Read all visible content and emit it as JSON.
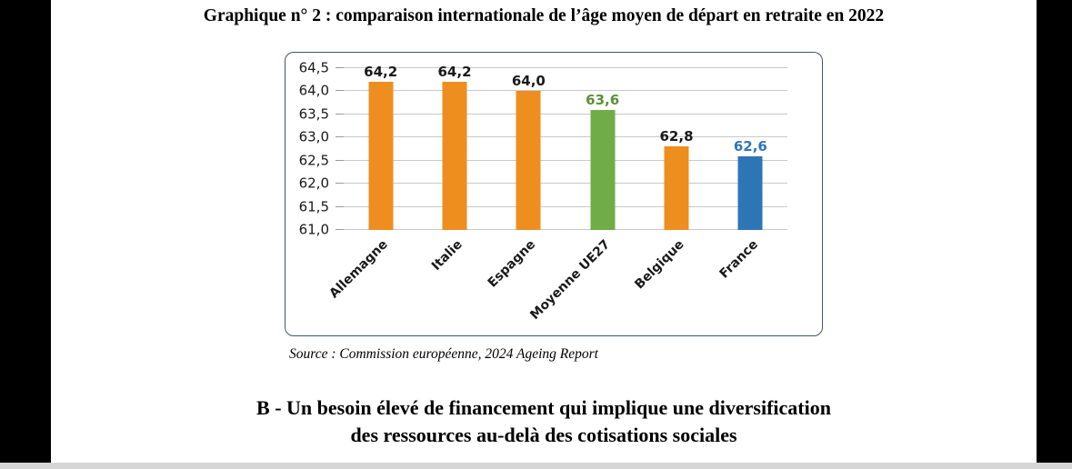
{
  "document": {
    "title": "Graphique n° 2 : comparaison internationale de l’âge moyen de départ en retraite en 2022",
    "source": "Source : Commission européenne, 2024 Ageing Report",
    "heading": {
      "line1": "B - Un besoin élevé de financement qui implique une diversification",
      "line2": "des ressources au-delà des cotisations sociales"
    }
  },
  "chart_data": {
    "type": "bar",
    "title": "Graphique n° 2 : comparaison internationale de l’âge moyen de départ en retraite en 2022",
    "categories": [
      "Allemagne",
      "Italie",
      "Espagne",
      "Moyenne UE27",
      "Belgique",
      "France"
    ],
    "values": [
      64.2,
      64.2,
      64.0,
      63.6,
      62.8,
      62.6
    ],
    "value_labels": [
      "64,2",
      "64,2",
      "64,0",
      "63,6",
      "62,8",
      "62,6"
    ],
    "bar_colors": [
      "#ED8E1F",
      "#ED8E1F",
      "#ED8E1F",
      "#70AD47",
      "#ED8E1F",
      "#2E75B6"
    ],
    "value_label_colors": [
      "#1a1a1a",
      "#1a1a1a",
      "#1a1a1a",
      "#5A9133",
      "#1a1a1a",
      "#2E75B6"
    ],
    "ylim": [
      61.0,
      64.5
    ],
    "yticks": [
      61.0,
      61.5,
      62.0,
      62.5,
      63.0,
      63.5,
      64.0,
      64.5
    ],
    "ytick_labels": [
      "61,0",
      "61,5",
      "62,0",
      "62,5",
      "63,0",
      "63,5",
      "64,0",
      "64,5"
    ],
    "xlabel": "",
    "ylabel": "",
    "grid": true,
    "legend": "none"
  }
}
